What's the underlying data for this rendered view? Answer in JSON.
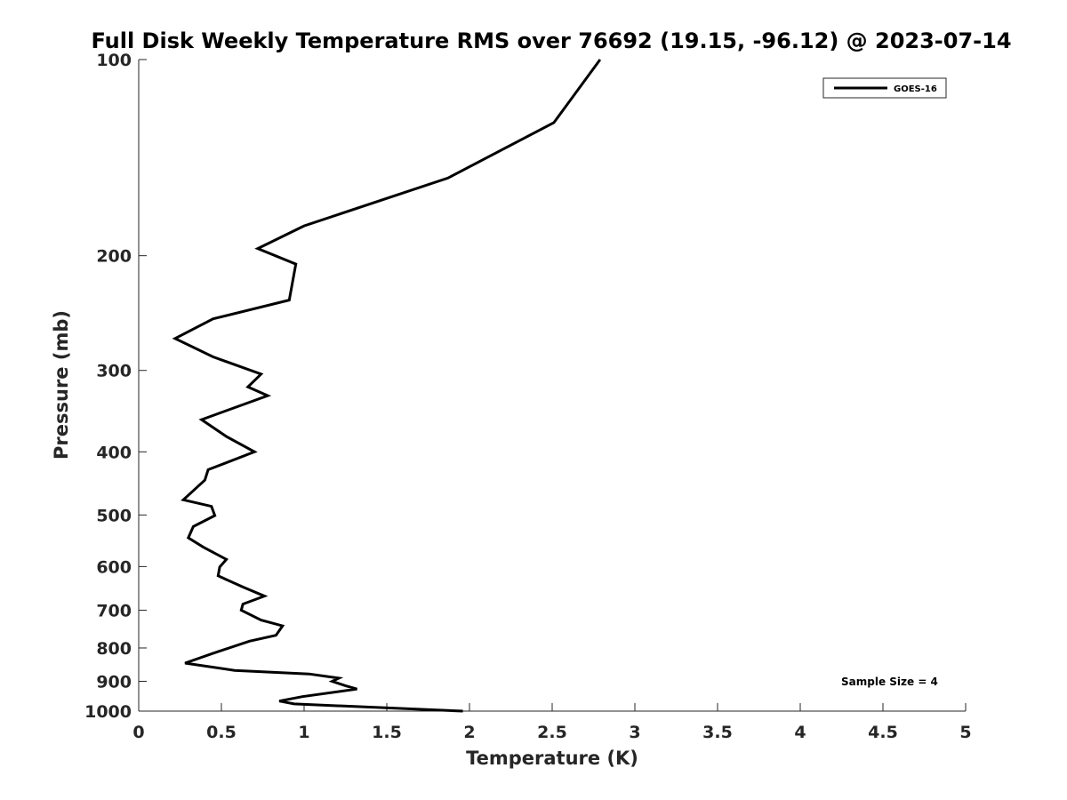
{
  "chart_data": {
    "type": "line",
    "title": "Full Disk Weekly Temperature RMS over 76692 (19.15, -96.12) @ 2023-07-14",
    "xlabel": "Temperature (K)",
    "ylabel": "Pressure (mb)",
    "xlim": [
      0,
      5
    ],
    "ylim": [
      100,
      1000
    ],
    "y_scale": "log",
    "y_reversed": true,
    "x_ticks": [
      "0",
      "0.5",
      "1",
      "1.5",
      "2",
      "2.5",
      "3",
      "3.5",
      "4",
      "4.5",
      "5"
    ],
    "y_ticks": [
      "100",
      "200",
      "300",
      "400",
      "500",
      "600",
      "700",
      "800",
      "900",
      "1000"
    ],
    "grid": false,
    "legend": {
      "position": "top-right",
      "entries": [
        "GOES-16"
      ]
    },
    "annotation": "Sample Size = 4",
    "series": [
      {
        "name": "GOES-16",
        "color": "#000000",
        "points": [
          [
            2.79,
            100
          ],
          [
            2.51,
            125
          ],
          [
            1.87,
            152
          ],
          [
            1.0,
            180
          ],
          [
            0.72,
            195
          ],
          [
            0.95,
            206
          ],
          [
            0.91,
            234
          ],
          [
            0.45,
            250
          ],
          [
            0.22,
            268
          ],
          [
            0.45,
            286
          ],
          [
            0.74,
            304
          ],
          [
            0.66,
            318
          ],
          [
            0.78,
            328
          ],
          [
            0.38,
            357
          ],
          [
            0.53,
            379
          ],
          [
            0.7,
            400
          ],
          [
            0.42,
            426
          ],
          [
            0.4,
            442
          ],
          [
            0.27,
            474
          ],
          [
            0.44,
            485
          ],
          [
            0.46,
            501
          ],
          [
            0.33,
            521
          ],
          [
            0.3,
            542
          ],
          [
            0.39,
            560
          ],
          [
            0.53,
            585
          ],
          [
            0.49,
            601
          ],
          [
            0.48,
            620
          ],
          [
            0.63,
            645
          ],
          [
            0.76,
            666
          ],
          [
            0.63,
            685
          ],
          [
            0.62,
            700
          ],
          [
            0.74,
            725
          ],
          [
            0.87,
            740
          ],
          [
            0.83,
            765
          ],
          [
            0.67,
            781
          ],
          [
            0.45,
            815
          ],
          [
            0.28,
            844
          ],
          [
            0.58,
            866
          ],
          [
            1.03,
            877
          ],
          [
            1.21,
            890
          ],
          [
            1.17,
            900
          ],
          [
            1.25,
            914
          ],
          [
            1.32,
            925
          ],
          [
            0.99,
            950
          ],
          [
            0.85,
            965
          ],
          [
            0.94,
            975
          ],
          [
            1.96,
            1000
          ]
        ]
      }
    ]
  }
}
